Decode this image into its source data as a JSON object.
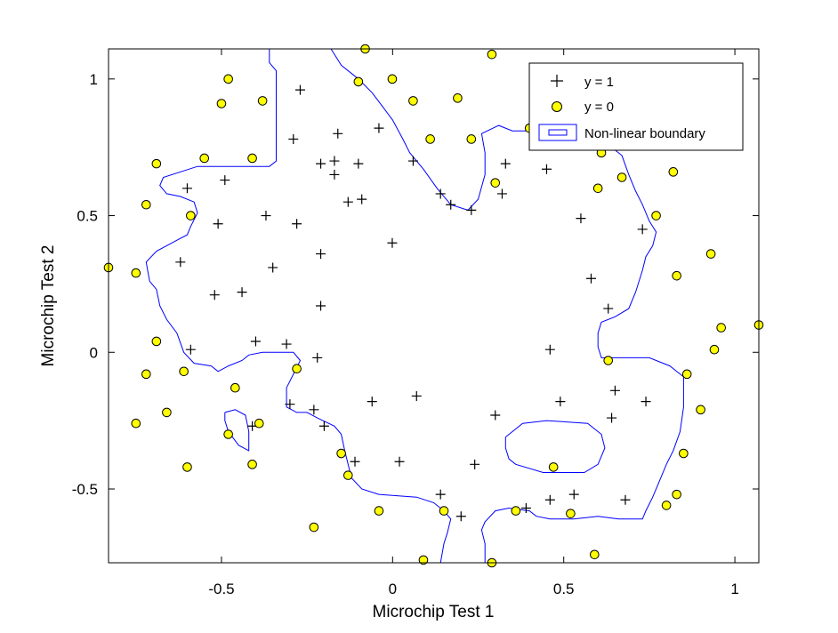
{
  "chart_data": {
    "type": "scatter",
    "xlabel": "Microchip Test 1",
    "ylabel": "Microchip Test 2",
    "xlim": [
      -0.83,
      1.07
    ],
    "ylim": [
      -0.77,
      1.11
    ],
    "xticks": [
      -0.5,
      0,
      0.5,
      1
    ],
    "yticks": [
      -0.5,
      0,
      0.5,
      1
    ],
    "xtick_labels": [
      "-0.5",
      "0",
      "0.5",
      "1"
    ],
    "ytick_labels": [
      "-0.5",
      "0",
      "0.5",
      "1"
    ],
    "grid": false,
    "legend_position": "top-right",
    "colors": {
      "positive_marker": "#000000",
      "negative_face": "#ffff00",
      "negative_edge": "#000000",
      "boundary": "#0000ff",
      "axes": "#000000"
    },
    "series": [
      {
        "name": "y = 1",
        "marker": "plus",
        "points": [
          [
            -0.27,
            0.96
          ],
          [
            -0.29,
            0.78
          ],
          [
            -0.16,
            0.8
          ],
          [
            -0.04,
            0.82
          ],
          [
            -0.21,
            0.69
          ],
          [
            -0.17,
            0.7
          ],
          [
            -0.1,
            0.69
          ],
          [
            0.06,
            0.7
          ],
          [
            -0.17,
            0.65
          ],
          [
            -0.49,
            0.63
          ],
          [
            -0.6,
            0.6
          ],
          [
            -0.13,
            0.55
          ],
          [
            -0.09,
            0.56
          ],
          [
            0.14,
            0.58
          ],
          [
            0.17,
            0.54
          ],
          [
            0.23,
            0.52
          ],
          [
            0.33,
            0.69
          ],
          [
            0.32,
            0.58
          ],
          [
            0.45,
            0.67
          ],
          [
            -0.51,
            0.47
          ],
          [
            -0.37,
            0.5
          ],
          [
            -0.28,
            0.47
          ],
          [
            -0.001,
            0.4
          ],
          [
            -0.35,
            0.31
          ],
          [
            -0.62,
            0.33
          ],
          [
            -0.21,
            0.36
          ],
          [
            0.55,
            0.49
          ],
          [
            0.58,
            0.27
          ],
          [
            0.73,
            0.45
          ],
          [
            0.63,
            0.16
          ],
          [
            -0.52,
            0.21
          ],
          [
            -0.44,
            0.22
          ],
          [
            -0.21,
            0.17
          ],
          [
            -0.4,
            0.04
          ],
          [
            -0.31,
            0.03
          ],
          [
            -0.59,
            0.01
          ],
          [
            -0.22,
            -0.02
          ],
          [
            0.46,
            0.01
          ],
          [
            -0.3,
            -0.19
          ],
          [
            -0.23,
            -0.21
          ],
          [
            -0.06,
            -0.18
          ],
          [
            0.07,
            -0.16
          ],
          [
            0.3,
            -0.23
          ],
          [
            0.49,
            -0.18
          ],
          [
            0.65,
            -0.14
          ],
          [
            0.64,
            -0.24
          ],
          [
            0.74,
            -0.18
          ],
          [
            -0.41,
            -0.27
          ],
          [
            -0.2,
            -0.27
          ],
          [
            -0.11,
            -0.4
          ],
          [
            0.02,
            -0.4
          ],
          [
            0.24,
            -0.41
          ],
          [
            0.14,
            -0.52
          ],
          [
            0.2,
            -0.6
          ],
          [
            0.39,
            -0.57
          ],
          [
            0.46,
            -0.54
          ],
          [
            0.53,
            -0.52
          ],
          [
            0.68,
            -0.54
          ]
        ]
      },
      {
        "name": "y = 0",
        "marker": "circle",
        "points": [
          [
            -0.08,
            1.11
          ],
          [
            0.29,
            1.09
          ],
          [
            -0.48,
            1.0
          ],
          [
            -0.1,
            0.99
          ],
          [
            -0.001,
            1.0
          ],
          [
            -0.5,
            0.91
          ],
          [
            -0.38,
            0.92
          ],
          [
            0.06,
            0.92
          ],
          [
            0.19,
            0.93
          ],
          [
            -0.55,
            0.71
          ],
          [
            -0.41,
            0.71
          ],
          [
            -0.69,
            0.69
          ],
          [
            0.11,
            0.78
          ],
          [
            0.23,
            0.78
          ],
          [
            0.4,
            0.82
          ],
          [
            0.61,
            0.73
          ],
          [
            0.82,
            0.66
          ],
          [
            0.3,
            0.62
          ],
          [
            0.67,
            0.64
          ],
          [
            0.6,
            0.6
          ],
          [
            -0.72,
            0.54
          ],
          [
            -0.59,
            0.5
          ],
          [
            0.77,
            0.5
          ],
          [
            -0.83,
            0.31
          ],
          [
            -0.75,
            0.29
          ],
          [
            0.93,
            0.36
          ],
          [
            0.83,
            0.28
          ],
          [
            -0.69,
            0.04
          ],
          [
            -0.61,
            -0.07
          ],
          [
            -0.28,
            -0.06
          ],
          [
            0.63,
            -0.03
          ],
          [
            0.96,
            0.09
          ],
          [
            1.07,
            0.1
          ],
          [
            0.94,
            0.01
          ],
          [
            0.86,
            -0.08
          ],
          [
            -0.72,
            -0.08
          ],
          [
            -0.46,
            -0.13
          ],
          [
            -0.66,
            -0.22
          ],
          [
            -0.75,
            -0.26
          ],
          [
            -0.39,
            -0.26
          ],
          [
            -0.48,
            -0.3
          ],
          [
            0.9,
            -0.21
          ],
          [
            0.85,
            -0.37
          ],
          [
            -0.6,
            -0.42
          ],
          [
            -0.41,
            -0.41
          ],
          [
            -0.15,
            -0.37
          ],
          [
            -0.13,
            -0.45
          ],
          [
            0.47,
            -0.42
          ],
          [
            -0.04,
            -0.58
          ],
          [
            0.15,
            -0.58
          ],
          [
            0.36,
            -0.58
          ],
          [
            0.52,
            -0.59
          ],
          [
            0.8,
            -0.56
          ],
          [
            0.83,
            -0.52
          ],
          [
            -0.23,
            -0.64
          ],
          [
            0.09,
            -0.76
          ],
          [
            0.29,
            -0.77
          ],
          [
            0.59,
            -0.74
          ]
        ]
      },
      {
        "name": "Non-linear boundary",
        "type": "contour",
        "color": "#0000ff",
        "outer_boundary": [
          [
            -0.36,
            1.11
          ],
          [
            -0.36,
            1.06
          ],
          [
            -0.34,
            1.03
          ],
          [
            -0.34,
            0.7
          ],
          [
            -0.36,
            0.68
          ],
          [
            -0.57,
            0.68
          ],
          [
            -0.67,
            0.64
          ],
          [
            -0.68,
            0.61
          ],
          [
            -0.66,
            0.58
          ],
          [
            -0.62,
            0.57
          ],
          [
            -0.58,
            0.55
          ],
          [
            -0.57,
            0.51
          ],
          [
            -0.59,
            0.46
          ],
          [
            -0.6,
            0.43
          ],
          [
            -0.63,
            0.41
          ],
          [
            -0.69,
            0.37
          ],
          [
            -0.72,
            0.33
          ],
          [
            -0.71,
            0.26
          ],
          [
            -0.69,
            0.23
          ],
          [
            -0.68,
            0.17
          ],
          [
            -0.66,
            0.12
          ],
          [
            -0.63,
            0.07
          ],
          [
            -0.61,
            0.0
          ],
          [
            -0.58,
            -0.04
          ],
          [
            -0.53,
            -0.05
          ],
          [
            -0.51,
            -0.07
          ],
          [
            -0.48,
            -0.05
          ],
          [
            -0.44,
            -0.03
          ],
          [
            -0.42,
            -0.01
          ],
          [
            -0.38,
            0.0
          ],
          [
            -0.29,
            0.0
          ],
          [
            -0.27,
            -0.03
          ],
          [
            -0.29,
            -0.08
          ],
          [
            -0.31,
            -0.13
          ],
          [
            -0.31,
            -0.2
          ],
          [
            -0.28,
            -0.22
          ],
          [
            -0.25,
            -0.22
          ],
          [
            -0.22,
            -0.24
          ],
          [
            -0.17,
            -0.27
          ],
          [
            -0.15,
            -0.3
          ],
          [
            -0.14,
            -0.36
          ],
          [
            -0.13,
            -0.41
          ],
          [
            -0.12,
            -0.46
          ],
          [
            -0.09,
            -0.5
          ],
          [
            -0.04,
            -0.52
          ],
          [
            0.07,
            -0.53
          ],
          [
            0.12,
            -0.55
          ],
          [
            0.15,
            -0.58
          ],
          [
            0.17,
            -0.61
          ],
          [
            0.16,
            -0.66
          ],
          [
            0.15,
            -0.7
          ],
          [
            0.14,
            -0.77
          ]
        ],
        "lower_right_boundary": [
          [
            0.27,
            -0.77
          ],
          [
            0.27,
            -0.7
          ],
          [
            0.26,
            -0.65
          ],
          [
            0.27,
            -0.62
          ],
          [
            0.3,
            -0.58
          ],
          [
            0.34,
            -0.57
          ],
          [
            0.4,
            -0.58
          ],
          [
            0.42,
            -0.6
          ],
          [
            0.46,
            -0.61
          ],
          [
            0.53,
            -0.61
          ],
          [
            0.6,
            -0.6
          ],
          [
            0.66,
            -0.61
          ],
          [
            0.73,
            -0.61
          ],
          [
            0.74,
            -0.58
          ],
          [
            0.76,
            -0.53
          ],
          [
            0.78,
            -0.47
          ],
          [
            0.8,
            -0.41
          ],
          [
            0.82,
            -0.36
          ],
          [
            0.84,
            -0.29
          ],
          [
            0.85,
            -0.2
          ],
          [
            0.85,
            -0.13
          ],
          [
            0.85,
            -0.09
          ],
          [
            0.81,
            -0.05
          ],
          [
            0.75,
            -0.02
          ],
          [
            0.68,
            -0.02
          ],
          [
            0.61,
            -0.02
          ],
          [
            0.6,
            0.02
          ],
          [
            0.6,
            0.07
          ],
          [
            0.61,
            0.11
          ],
          [
            0.65,
            0.13
          ],
          [
            0.69,
            0.16
          ],
          [
            0.71,
            0.22
          ],
          [
            0.73,
            0.3
          ],
          [
            0.74,
            0.35
          ],
          [
            0.76,
            0.39
          ],
          [
            0.77,
            0.44
          ],
          [
            0.75,
            0.48
          ],
          [
            0.73,
            0.54
          ],
          [
            0.71,
            0.59
          ],
          [
            0.69,
            0.65
          ],
          [
            0.67,
            0.72
          ],
          [
            0.63,
            0.76
          ],
          [
            0.55,
            0.79
          ],
          [
            0.42,
            0.81
          ],
          [
            0.35,
            0.81
          ],
          [
            0.31,
            0.83
          ],
          [
            0.26,
            0.8
          ],
          [
            0.27,
            0.73
          ],
          [
            0.27,
            0.65
          ],
          [
            0.25,
            0.56
          ],
          [
            0.22,
            0.52
          ],
          [
            0.17,
            0.54
          ],
          [
            0.13,
            0.6
          ],
          [
            0.09,
            0.67
          ],
          [
            0.05,
            0.73
          ],
          [
            0.03,
            0.78
          ],
          [
            0.0,
            0.85
          ],
          [
            -0.03,
            0.9
          ],
          [
            -0.06,
            0.95
          ],
          [
            -0.1,
            1.0
          ],
          [
            -0.15,
            1.05
          ],
          [
            -0.18,
            1.11
          ]
        ],
        "island_left": [
          [
            -0.49,
            -0.22
          ],
          [
            -0.46,
            -0.21
          ],
          [
            -0.43,
            -0.23
          ],
          [
            -0.42,
            -0.29
          ],
          [
            -0.42,
            -0.36
          ],
          [
            -0.45,
            -0.34
          ],
          [
            -0.48,
            -0.29
          ],
          [
            -0.49,
            -0.25
          ],
          [
            -0.49,
            -0.22
          ]
        ],
        "island_right": [
          [
            0.33,
            -0.31
          ],
          [
            0.38,
            -0.26
          ],
          [
            0.45,
            -0.25
          ],
          [
            0.57,
            -0.26
          ],
          [
            0.61,
            -0.3
          ],
          [
            0.62,
            -0.35
          ],
          [
            0.6,
            -0.41
          ],
          [
            0.56,
            -0.44
          ],
          [
            0.44,
            -0.44
          ],
          [
            0.36,
            -0.41
          ],
          [
            0.34,
            -0.39
          ],
          [
            0.33,
            -0.35
          ],
          [
            0.33,
            -0.31
          ]
        ]
      }
    ]
  }
}
